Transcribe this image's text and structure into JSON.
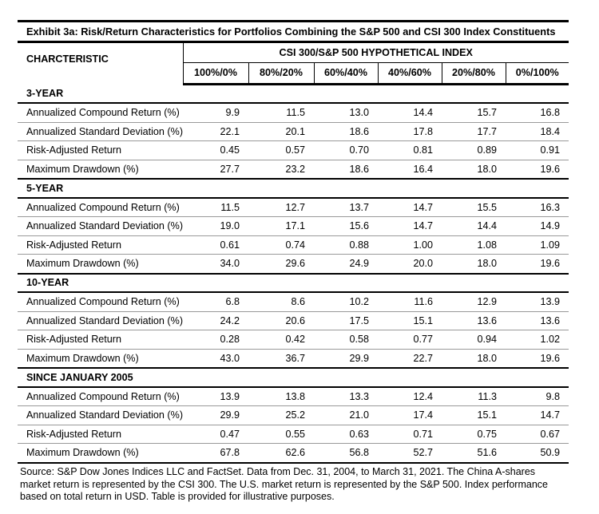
{
  "chart_data": {
    "type": "table",
    "title": "Exhibit 3a: Risk/Return Characteristics for Portfolios Combining the S&P 500 and CSI 300 Index Constituents",
    "row_header": "CHARCTERISTIC",
    "group_header": "CSI 300/S&P 500 HYPOTHETICAL INDEX",
    "columns": [
      "100%/0%",
      "80%/20%",
      "60%/40%",
      "40%/60%",
      "20%/80%",
      "0%/100%"
    ],
    "sections": [
      {
        "name": "3-YEAR",
        "rows": [
          {
            "label": "Annualized Compound Return (%)",
            "values": [
              "9.9",
              "11.5",
              "13.0",
              "14.4",
              "15.7",
              "16.8"
            ]
          },
          {
            "label": "Annualized Standard Deviation (%)",
            "values": [
              "22.1",
              "20.1",
              "18.6",
              "17.8",
              "17.7",
              "18.4"
            ]
          },
          {
            "label": "Risk-Adjusted Return",
            "values": [
              "0.45",
              "0.57",
              "0.70",
              "0.81",
              "0.89",
              "0.91"
            ]
          },
          {
            "label": "Maximum Drawdown (%)",
            "values": [
              "27.7",
              "23.2",
              "18.6",
              "16.4",
              "18.0",
              "19.6"
            ]
          }
        ]
      },
      {
        "name": "5-YEAR",
        "rows": [
          {
            "label": "Annualized Compound Return (%)",
            "values": [
              "11.5",
              "12.7",
              "13.7",
              "14.7",
              "15.5",
              "16.3"
            ]
          },
          {
            "label": "Annualized Standard Deviation (%)",
            "values": [
              "19.0",
              "17.1",
              "15.6",
              "14.7",
              "14.4",
              "14.9"
            ]
          },
          {
            "label": "Risk-Adjusted Return",
            "values": [
              "0.61",
              "0.74",
              "0.88",
              "1.00",
              "1.08",
              "1.09"
            ]
          },
          {
            "label": "Maximum Drawdown (%)",
            "values": [
              "34.0",
              "29.6",
              "24.9",
              "20.0",
              "18.0",
              "19.6"
            ]
          }
        ]
      },
      {
        "name": "10-YEAR",
        "rows": [
          {
            "label": "Annualized Compound Return (%)",
            "values": [
              "6.8",
              "8.6",
              "10.2",
              "11.6",
              "12.9",
              "13.9"
            ]
          },
          {
            "label": "Annualized Standard Deviation (%)",
            "values": [
              "24.2",
              "20.6",
              "17.5",
              "15.1",
              "13.6",
              "13.6"
            ]
          },
          {
            "label": "Risk-Adjusted Return",
            "values": [
              "0.28",
              "0.42",
              "0.58",
              "0.77",
              "0.94",
              "1.02"
            ]
          },
          {
            "label": "Maximum Drawdown (%)",
            "values": [
              "43.0",
              "36.7",
              "29.9",
              "22.7",
              "18.0",
              "19.6"
            ]
          }
        ]
      },
      {
        "name": "SINCE JANUARY 2005",
        "rows": [
          {
            "label": "Annualized Compound Return (%)",
            "values": [
              "13.9",
              "13.8",
              "13.3",
              "12.4",
              "11.3",
              "9.8"
            ]
          },
          {
            "label": "Annualized Standard Deviation (%)",
            "values": [
              "29.9",
              "25.2",
              "21.0",
              "17.4",
              "15.1",
              "14.7"
            ]
          },
          {
            "label": "Risk-Adjusted Return",
            "values": [
              "0.47",
              "0.55",
              "0.63",
              "0.71",
              "0.75",
              "0.67"
            ]
          },
          {
            "label": "Maximum Drawdown (%)",
            "values": [
              "67.8",
              "62.6",
              "56.8",
              "52.7",
              "51.6",
              "50.9"
            ]
          }
        ]
      }
    ]
  },
  "source_note": {
    "lines": [
      "Source: S&P Dow Jones Indices LLC and FactSet. Data from Dec. 31, 2004, to March 31, 2021. The China A-shares",
      "market return is represented by the CSI 300. The U.S. market return is represented by the S&P 500. Index performance",
      "based on total return in USD. Table is provided for illustrative purposes."
    ]
  }
}
